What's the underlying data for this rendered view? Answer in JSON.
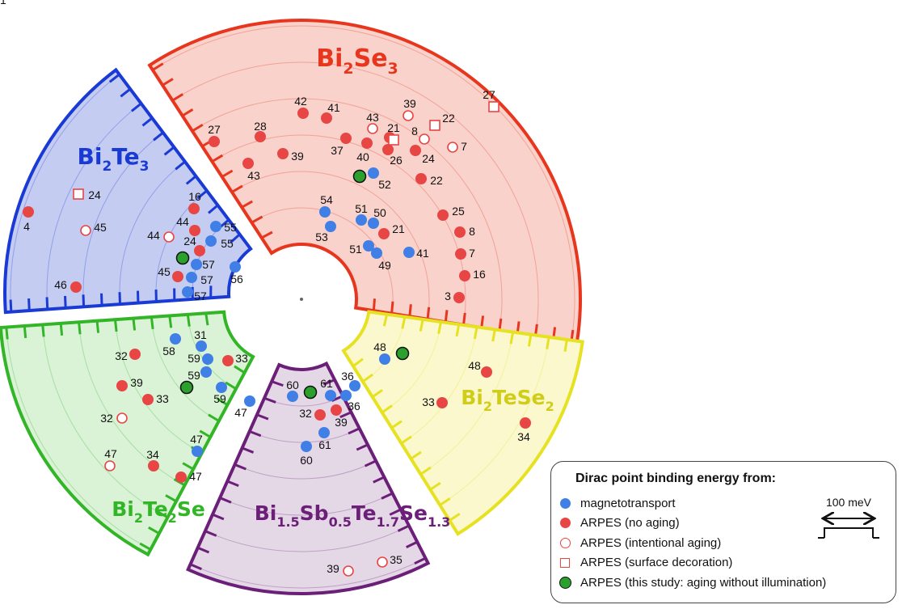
{
  "colors": {
    "Bi2Se3": {
      "stroke": "#e8361e",
      "fill": "#f8d2cb",
      "title": "#e8361e"
    },
    "Bi2Te3": {
      "stroke": "#1a3ad6",
      "fill": "#c4ccf1",
      "title": "#1a3ad6"
    },
    "Bi2Te2Se": {
      "stroke": "#33b528",
      "fill": "#daf2d6",
      "title": "#33b528"
    },
    "BSTS": {
      "stroke": "#6b1f78",
      "fill": "#e4d8e6",
      "title": "#6b1f78"
    },
    "Bi2TeSe2": {
      "stroke": "#e6e222",
      "fill": "#fbf8cd",
      "title": "#d0cd19"
    },
    "magneto": "#3f7fe6",
    "arpes": "#e84545",
    "study": "#2ca02c"
  },
  "sectors": [
    {
      "key": "Bi2Se3",
      "title_parts": [
        [
          "Bi",
          ""
        ],
        [
          "2",
          "sub"
        ],
        [
          "Se",
          ""
        ],
        [
          "3",
          "sub"
        ]
      ]
    },
    {
      "key": "Bi2Te3",
      "title_parts": [
        [
          "Bi",
          ""
        ],
        [
          "2",
          "sub"
        ],
        [
          "Te",
          ""
        ],
        [
          "3",
          "sub"
        ]
      ]
    },
    {
      "key": "Bi2Te2Se",
      "title_parts": [
        [
          "Bi",
          ""
        ],
        [
          "2",
          "sub"
        ],
        [
          "Te",
          ""
        ],
        [
          "2",
          "sub"
        ],
        [
          "Se",
          ""
        ]
      ]
    },
    {
      "key": "BSTS",
      "title_parts": [
        [
          "Bi",
          ""
        ],
        [
          "1.5",
          "sub"
        ],
        [
          "Sb",
          ""
        ],
        [
          "0.5",
          "sub"
        ],
        [
          "Te",
          ""
        ],
        [
          "1.7",
          "sub"
        ],
        [
          "Se",
          ""
        ],
        [
          "1.3",
          "sub"
        ]
      ]
    },
    {
      "key": "Bi2TeSe2",
      "title_parts": [
        [
          "Bi",
          ""
        ],
        [
          "2",
          "sub"
        ],
        [
          "TeSe",
          ""
        ],
        [
          "2",
          "sub"
        ]
      ]
    }
  ],
  "points": [
    {
      "type": "arpes",
      "label": "42"
    },
    {
      "type": "arpes",
      "label": "41"
    },
    {
      "type": "arpes",
      "label": "27"
    },
    {
      "type": "arpes",
      "label": "28"
    },
    {
      "type": "arpes",
      "label": "39"
    },
    {
      "type": "arpes",
      "label": "43"
    },
    {
      "type": "arpes",
      "label": "37"
    },
    {
      "type": "arpes",
      "label": "40"
    },
    {
      "type": "arpes",
      "label": "21"
    },
    {
      "type": "arpes",
      "label": "26"
    },
    {
      "type": "arpes",
      "label": "24"
    },
    {
      "type": "arpes",
      "label": "22"
    },
    {
      "type": "aged",
      "label": "43"
    },
    {
      "type": "aged",
      "label": "39"
    },
    {
      "type": "aged",
      "label": "8"
    },
    {
      "type": "aged",
      "label": "7"
    },
    {
      "type": "deco",
      "label": "21"
    },
    {
      "type": "deco",
      "label": "22"
    },
    {
      "type": "deco",
      "label": "27"
    },
    {
      "type": "study",
      "label": ""
    },
    {
      "type": "magneto",
      "label": "52"
    },
    {
      "type": "magneto",
      "label": "54"
    },
    {
      "type": "magneto",
      "label": "53"
    },
    {
      "type": "magneto",
      "label": "51"
    },
    {
      "type": "magneto",
      "label": "50"
    },
    {
      "type": "arpes",
      "label": "21"
    },
    {
      "type": "magneto",
      "label": "51"
    },
    {
      "type": "magneto",
      "label": "49"
    },
    {
      "type": "magneto",
      "label": "41"
    },
    {
      "type": "arpes",
      "label": "25"
    },
    {
      "type": "arpes",
      "label": "8"
    },
    {
      "type": "arpes",
      "label": "7"
    },
    {
      "type": "arpes",
      "label": "16"
    },
    {
      "type": "arpes",
      "label": "3"
    },
    {
      "type": "deco",
      "label": "24"
    },
    {
      "type": "arpes",
      "label": "4"
    },
    {
      "type": "aged",
      "label": "45"
    },
    {
      "type": "arpes",
      "label": "46"
    },
    {
      "type": "arpes",
      "label": "16"
    },
    {
      "type": "arpes",
      "label": "44"
    },
    {
      "type": "aged",
      "label": "44"
    },
    {
      "type": "magneto",
      "label": "55"
    },
    {
      "type": "magneto",
      "label": "55"
    },
    {
      "type": "arpes",
      "label": "24"
    },
    {
      "type": "study",
      "label": ""
    },
    {
      "type": "magneto",
      "label": "57"
    },
    {
      "type": "arpes",
      "label": "45"
    },
    {
      "type": "magneto",
      "label": "57"
    },
    {
      "type": "magneto",
      "label": "57"
    },
    {
      "type": "magneto",
      "label": "56"
    },
    {
      "type": "magneto",
      "label": "58"
    },
    {
      "type": "magneto",
      "label": "31"
    },
    {
      "type": "arpes",
      "label": "32"
    },
    {
      "type": "magneto",
      "label": "59"
    },
    {
      "type": "arpes",
      "label": "33"
    },
    {
      "type": "magneto",
      "label": "59"
    },
    {
      "type": "arpes",
      "label": "39"
    },
    {
      "type": "study",
      "label": ""
    },
    {
      "type": "arpes",
      "label": "33"
    },
    {
      "type": "magneto",
      "label": "59"
    },
    {
      "type": "magneto",
      "label": "47"
    },
    {
      "type": "aged",
      "label": "32"
    },
    {
      "type": "magneto",
      "label": "47"
    },
    {
      "type": "aged",
      "label": "47"
    },
    {
      "type": "arpes",
      "label": "34"
    },
    {
      "type": "arpes",
      "label": "47"
    },
    {
      "type": "magneto",
      "label": "60"
    },
    {
      "type": "study",
      "label": ""
    },
    {
      "type": "magneto",
      "label": "61"
    },
    {
      "type": "magneto",
      "label": "36"
    },
    {
      "type": "magneto",
      "label": "36"
    },
    {
      "type": "arpes",
      "label": "32"
    },
    {
      "type": "arpes",
      "label": "39"
    },
    {
      "type": "magneto",
      "label": "61"
    },
    {
      "type": "magneto",
      "label": "60"
    },
    {
      "type": "aged",
      "label": "39"
    },
    {
      "type": "aged",
      "label": "35"
    },
    {
      "type": "magneto",
      "label": "48"
    },
    {
      "type": "study",
      "label": ""
    },
    {
      "type": "arpes",
      "label": "48"
    },
    {
      "type": "arpes",
      "label": "33"
    },
    {
      "type": "arpes",
      "label": "34"
    }
  ],
  "legend": {
    "title": "Dirac point binding energy from:",
    "items": [
      {
        "type": "magneto",
        "label": "magnetotransport"
      },
      {
        "type": "arpes",
        "label": "ARPES (no aging)"
      },
      {
        "type": "aged",
        "label": "ARPES (intentional aging)"
      },
      {
        "type": "deco",
        "label": "ARPES (surface decoration)"
      },
      {
        "type": "study",
        "label": "ARPES (this study: aging without illumination)"
      }
    ],
    "scale_label": "100 meV"
  }
}
